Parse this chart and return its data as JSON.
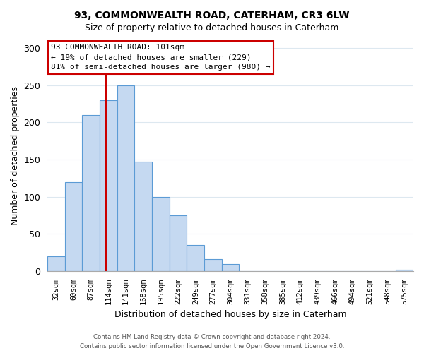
{
  "title": "93, COMMONWEALTH ROAD, CATERHAM, CR3 6LW",
  "subtitle": "Size of property relative to detached houses in Caterham",
  "xlabel": "Distribution of detached houses by size in Caterham",
  "ylabel": "Number of detached properties",
  "bar_labels": [
    "32sqm",
    "60sqm",
    "87sqm",
    "114sqm",
    "141sqm",
    "168sqm",
    "195sqm",
    "222sqm",
    "249sqm",
    "277sqm",
    "304sqm",
    "331sqm",
    "358sqm",
    "385sqm",
    "412sqm",
    "439sqm",
    "466sqm",
    "494sqm",
    "521sqm",
    "548sqm",
    "575sqm"
  ],
  "bar_heights": [
    20,
    120,
    210,
    230,
    250,
    147,
    100,
    75,
    35,
    16,
    9,
    0,
    0,
    0,
    0,
    0,
    0,
    0,
    0,
    0,
    2
  ],
  "bar_color": "#c5d9f1",
  "bar_edge_color": "#5b9bd5",
  "vline_color": "#cc0000",
  "vline_x": 2.85,
  "ylim": [
    0,
    310
  ],
  "yticks": [
    0,
    50,
    100,
    150,
    200,
    250,
    300
  ],
  "annotation_title": "93 COMMONWEALTH ROAD: 101sqm",
  "annotation_line1": "← 19% of detached houses are smaller (229)",
  "annotation_line2": "81% of semi-detached houses are larger (980) →",
  "annotation_box_color": "#ffffff",
  "annotation_box_edge": "#cc0000",
  "footer_line1": "Contains HM Land Registry data © Crown copyright and database right 2024.",
  "footer_line2": "Contains public sector information licensed under the Open Government Licence v3.0.",
  "background_color": "#ffffff",
  "grid_color": "#dde8f0"
}
